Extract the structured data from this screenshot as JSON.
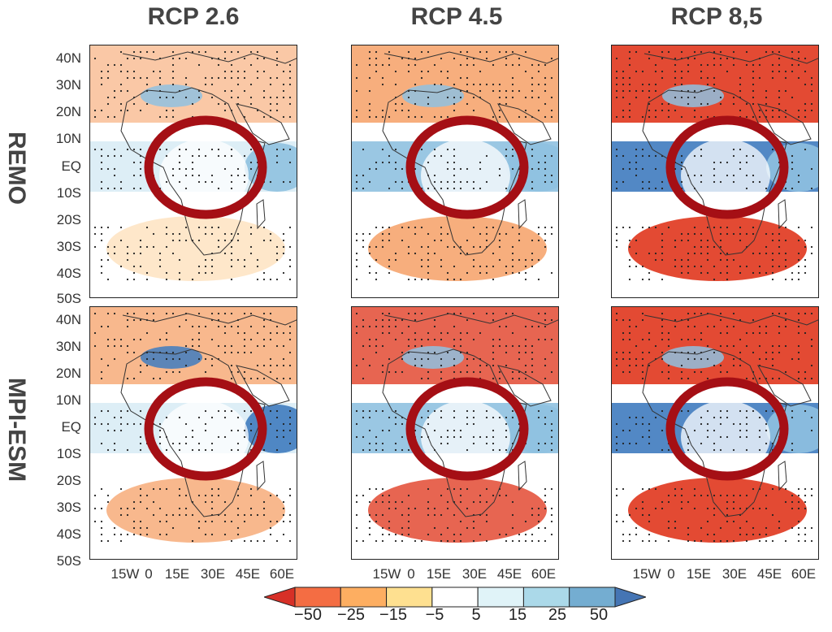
{
  "columns": [
    "RCP 2.6",
    "RCP 4.5",
    "RCP 8,5"
  ],
  "rows": [
    "REMO",
    "MPI-ESM"
  ],
  "lat_labels": [
    "40N",
    "30N",
    "20N",
    "10N",
    "EQ",
    "10S",
    "20S",
    "30S",
    "40S",
    "50S"
  ],
  "lon_labels": [
    "15W",
    "0",
    "15E",
    "30E",
    "45E",
    "60E"
  ],
  "colorbar": {
    "labels": [
      "−50",
      "−25",
      "−15",
      "−5",
      "5",
      "15",
      "25",
      "50"
    ],
    "colors": [
      "#d73027",
      "#f46d43",
      "#fdae61",
      "#fee090",
      "#ffffff",
      "#e0f3f8",
      "#abd9e9",
      "#74add1",
      "#4575b4"
    ]
  },
  "palette": {
    "dry_strong": "#e34a33",
    "dry": "#f59a5c",
    "dry_light": "#fdd49e",
    "wet_light": "#d9ecf5",
    "wet": "#8fc1e0",
    "wet_strong": "#3f7bbf",
    "circle": "#a50f15",
    "coast": "#333333"
  }
}
